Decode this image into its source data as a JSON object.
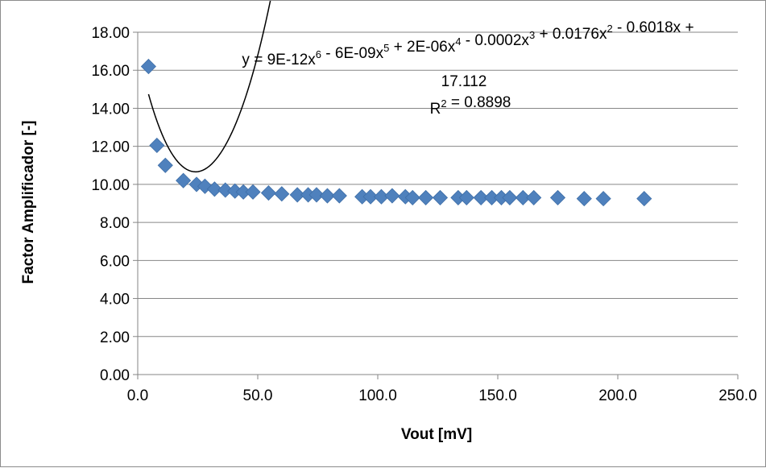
{
  "chart_data": {
    "type": "scatter",
    "xlabel": "Vout [mV]",
    "ylabel": "Factor Amplificador [-]",
    "xlim": [
      0,
      250
    ],
    "ylim": [
      0,
      18
    ],
    "x_ticks": [
      "0.0",
      "50.0",
      "100.0",
      "150.0",
      "200.0",
      "250.0"
    ],
    "y_ticks": [
      "0.00",
      "2.00",
      "4.00",
      "6.00",
      "8.00",
      "10.00",
      "12.00",
      "14.00",
      "16.00",
      "18.00"
    ],
    "grid": "horizontal",
    "marker": "diamond",
    "marker_color": "#4f81bd",
    "trendline_color": "#000000",
    "points": [
      [
        4.5,
        16.2
      ],
      [
        8,
        12.05
      ],
      [
        11.5,
        11.0
      ],
      [
        19,
        10.2
      ],
      [
        24.5,
        10.0
      ],
      [
        28,
        9.9
      ],
      [
        32,
        9.75
      ],
      [
        36.5,
        9.7
      ],
      [
        40.5,
        9.65
      ],
      [
        44,
        9.6
      ],
      [
        48,
        9.6
      ],
      [
        54.5,
        9.55
      ],
      [
        60,
        9.5
      ],
      [
        66.5,
        9.45
      ],
      [
        71,
        9.45
      ],
      [
        74.5,
        9.45
      ],
      [
        79,
        9.4
      ],
      [
        84,
        9.4
      ],
      [
        93.5,
        9.35
      ],
      [
        97,
        9.35
      ],
      [
        101.5,
        9.35
      ],
      [
        106,
        9.4
      ],
      [
        111.5,
        9.35
      ],
      [
        114.5,
        9.3
      ],
      [
        120,
        9.3
      ],
      [
        126,
        9.3
      ],
      [
        133.5,
        9.3
      ],
      [
        137,
        9.3
      ],
      [
        143,
        9.3
      ],
      [
        147.5,
        9.3
      ],
      [
        151.5,
        9.3
      ],
      [
        155,
        9.3
      ],
      [
        160.5,
        9.3
      ],
      [
        165,
        9.3
      ],
      [
        175,
        9.3
      ],
      [
        186,
        9.25
      ],
      [
        194,
        9.25
      ],
      [
        211,
        9.25
      ]
    ],
    "trendline": {
      "type": "polynomial",
      "coefficients_high_to_low": [
        9e-12,
        -6e-09,
        2e-06,
        -0.0002,
        0.0176,
        -0.6018,
        17.112
      ],
      "x_range": [
        4.5,
        211
      ]
    },
    "equation_line1_parts": [
      {
        "t": "y = 9E-12x"
      },
      {
        "t": "6",
        "sup": true
      },
      {
        "t": " - 6E-09x"
      },
      {
        "t": "5",
        "sup": true
      },
      {
        "t": " + 2E-06x"
      },
      {
        "t": "4",
        "sup": true
      },
      {
        "t": " - 0.0002x"
      },
      {
        "t": "3",
        "sup": true
      },
      {
        "t": " + 0.0176x"
      },
      {
        "t": "2",
        "sup": true
      },
      {
        "t": " - 0.6018x +"
      }
    ],
    "equation_line2": "17.112",
    "r_squared_parts": [
      {
        "t": "R"
      },
      {
        "t": "2",
        "sup": true
      },
      {
        "t": " = 0.8898"
      }
    ]
  }
}
